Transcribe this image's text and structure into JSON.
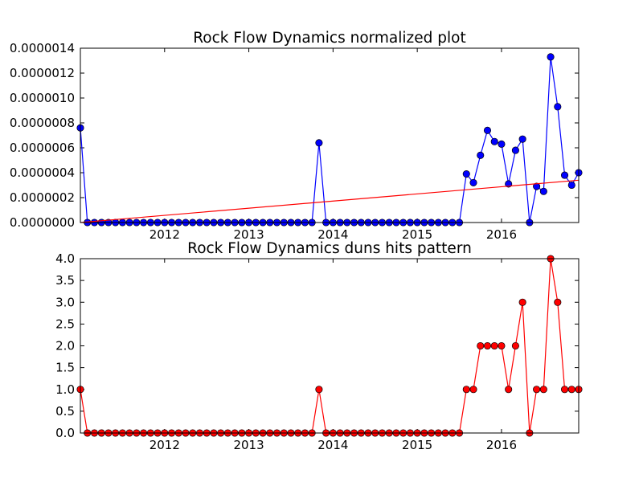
{
  "chart_data": [
    {
      "type": "line",
      "title": "Rock Flow Dynamics normalized plot",
      "xlabel": "",
      "ylabel": "",
      "x_tick_labels": [
        "2012",
        "2013",
        "2014",
        "2015",
        "2016"
      ],
      "y_tick_labels": [
        "0.0000000",
        "0.0000002",
        "0.0000004",
        "0.0000006",
        "0.0000008",
        "0.0000010",
        "0.0000012",
        "0.0000014"
      ],
      "xlim": [
        "2011-01",
        "2016-12"
      ],
      "ylim": [
        0,
        1.4e-06
      ],
      "grid": false,
      "x": [
        "2011-01",
        "2011-02",
        "2011-03",
        "2011-04",
        "2011-05",
        "2011-06",
        "2011-07",
        "2011-08",
        "2011-09",
        "2011-10",
        "2011-11",
        "2011-12",
        "2012-01",
        "2012-02",
        "2012-03",
        "2012-04",
        "2012-05",
        "2012-06",
        "2012-07",
        "2012-08",
        "2012-09",
        "2012-10",
        "2012-11",
        "2012-12",
        "2013-01",
        "2013-02",
        "2013-03",
        "2013-04",
        "2013-05",
        "2013-06",
        "2013-07",
        "2013-08",
        "2013-09",
        "2013-10",
        "2013-11",
        "2013-12",
        "2014-01",
        "2014-02",
        "2014-03",
        "2014-04",
        "2014-05",
        "2014-06",
        "2014-07",
        "2014-08",
        "2014-09",
        "2014-10",
        "2014-11",
        "2014-12",
        "2015-01",
        "2015-02",
        "2015-03",
        "2015-04",
        "2015-05",
        "2015-06",
        "2015-07",
        "2015-08",
        "2015-09",
        "2015-10",
        "2015-11",
        "2015-12",
        "2016-01",
        "2016-02",
        "2016-03",
        "2016-04",
        "2016-05",
        "2016-06",
        "2016-07",
        "2016-08",
        "2016-09",
        "2016-10",
        "2016-11",
        "2016-12"
      ],
      "series": [
        {
          "color": "#0000ff",
          "marker": "circle",
          "values": [
            7.6e-07,
            0,
            0,
            0,
            0,
            0,
            0,
            0,
            0,
            0,
            0,
            0,
            0,
            0,
            0,
            0,
            0,
            0,
            0,
            0,
            0,
            0,
            0,
            0,
            0,
            0,
            0,
            0,
            0,
            0,
            0,
            0,
            0,
            0,
            6.4e-07,
            0,
            0,
            0,
            0,
            0,
            0,
            0,
            0,
            0,
            0,
            0,
            0,
            0,
            0,
            0,
            0,
            0,
            0,
            0,
            0,
            3.9e-07,
            3.2e-07,
            5.4e-07,
            7.4e-07,
            6.5e-07,
            6.3e-07,
            3.1e-07,
            5.8e-07,
            6.7e-07,
            0,
            2.9e-07,
            2.5e-07,
            1.33e-06,
            9.3e-07,
            3.8e-07,
            3e-07,
            4e-07
          ]
        }
      ],
      "trend_line": {
        "color": "#ff0000",
        "start": [
          "2011-01",
          0.0
        ],
        "end": [
          "2016-12",
          3.4e-07
        ]
      }
    },
    {
      "type": "line",
      "title": "Rock Flow Dynamics duns hits pattern",
      "xlabel": "",
      "ylabel": "",
      "x_tick_labels": [
        "2012",
        "2013",
        "2014",
        "2015",
        "2016"
      ],
      "y_tick_labels": [
        "0.0",
        "0.5",
        "1.0",
        "1.5",
        "2.0",
        "2.5",
        "3.0",
        "3.5",
        "4.0"
      ],
      "xlim": [
        "2011-01",
        "2016-12"
      ],
      "ylim": [
        0,
        4
      ],
      "grid": false,
      "series": [
        {
          "color": "#ff0000",
          "marker": "circle",
          "values": [
            1,
            0,
            0,
            0,
            0,
            0,
            0,
            0,
            0,
            0,
            0,
            0,
            0,
            0,
            0,
            0,
            0,
            0,
            0,
            0,
            0,
            0,
            0,
            0,
            0,
            0,
            0,
            0,
            0,
            0,
            0,
            0,
            0,
            0,
            1,
            0,
            0,
            0,
            0,
            0,
            0,
            0,
            0,
            0,
            0,
            0,
            0,
            0,
            0,
            0,
            0,
            0,
            0,
            0,
            0,
            1,
            1,
            2,
            2,
            2,
            2,
            1,
            2,
            3,
            0,
            1,
            1,
            4,
            3,
            1,
            1,
            1
          ]
        }
      ]
    }
  ]
}
